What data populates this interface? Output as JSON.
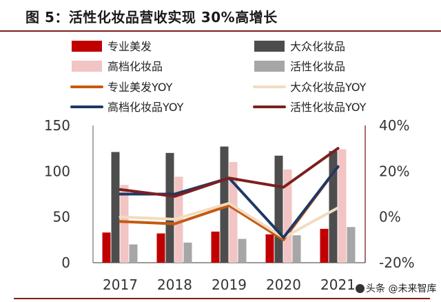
{
  "header": {
    "title": "图 5：活性化妆品营收实现 30%高增长"
  },
  "watermark": {
    "text": "头条 @未来智库"
  },
  "chart_data": {
    "type": "bar",
    "title": "图 5：活性化妆品营收实现 30%高增长",
    "categories": [
      "2017",
      "2018",
      "2019",
      "2020",
      "2021"
    ],
    "series": [
      {
        "name": "专业美发",
        "kind": "bar",
        "axis": "left",
        "color": "#c00000",
        "values": [
          33,
          32,
          34,
          31,
          37
        ]
      },
      {
        "name": "大众化妆品",
        "kind": "bar",
        "axis": "left",
        "color": "#4d4d4d",
        "values": [
          121,
          120,
          127,
          117,
          122
        ]
      },
      {
        "name": "高档化妆品",
        "kind": "bar",
        "axis": "left",
        "color": "#f2c4c4",
        "values": [
          85,
          94,
          110,
          102,
          124
        ]
      },
      {
        "name": "活性化妆品",
        "kind": "bar",
        "axis": "left",
        "color": "#a6a6a6",
        "values": [
          20,
          22,
          26,
          30,
          39
        ]
      },
      {
        "name": "专业美发YOY",
        "kind": "line",
        "axis": "right",
        "color": "#c55a11",
        "values": [
          -2,
          -3,
          5,
          -10,
          22
        ]
      },
      {
        "name": "大众化妆品YOY",
        "kind": "line",
        "axis": "right",
        "color": "#f1dcc0",
        "values": [
          0,
          -1,
          6,
          -9,
          4
        ]
      },
      {
        "name": "高档化妆品YOY",
        "kind": "line",
        "axis": "right",
        "color": "#1f3864",
        "values": [
          10,
          10,
          17,
          -9,
          22
        ]
      },
      {
        "name": "活性化妆品YOY",
        "kind": "line",
        "axis": "right",
        "color": "#7b2020",
        "values": [
          12,
          9,
          17,
          13,
          30
        ]
      }
    ],
    "y_left": {
      "min": 0,
      "max": 150,
      "ticks": [
        "0",
        "50",
        "100",
        "150"
      ]
    },
    "y_right": {
      "min": -20,
      "max": 40,
      "ticks": [
        "-20%",
        "0%",
        "20%",
        "40%"
      ]
    },
    "legend": {
      "placement": "top",
      "items": [
        "专业美发",
        "大众化妆品",
        "高档化妆品",
        "活性化妆品",
        "专业美发YOY",
        "大众化妆品YOY",
        "高档化妆品YOY",
        "活性化妆品YOY"
      ]
    },
    "grid": false
  }
}
